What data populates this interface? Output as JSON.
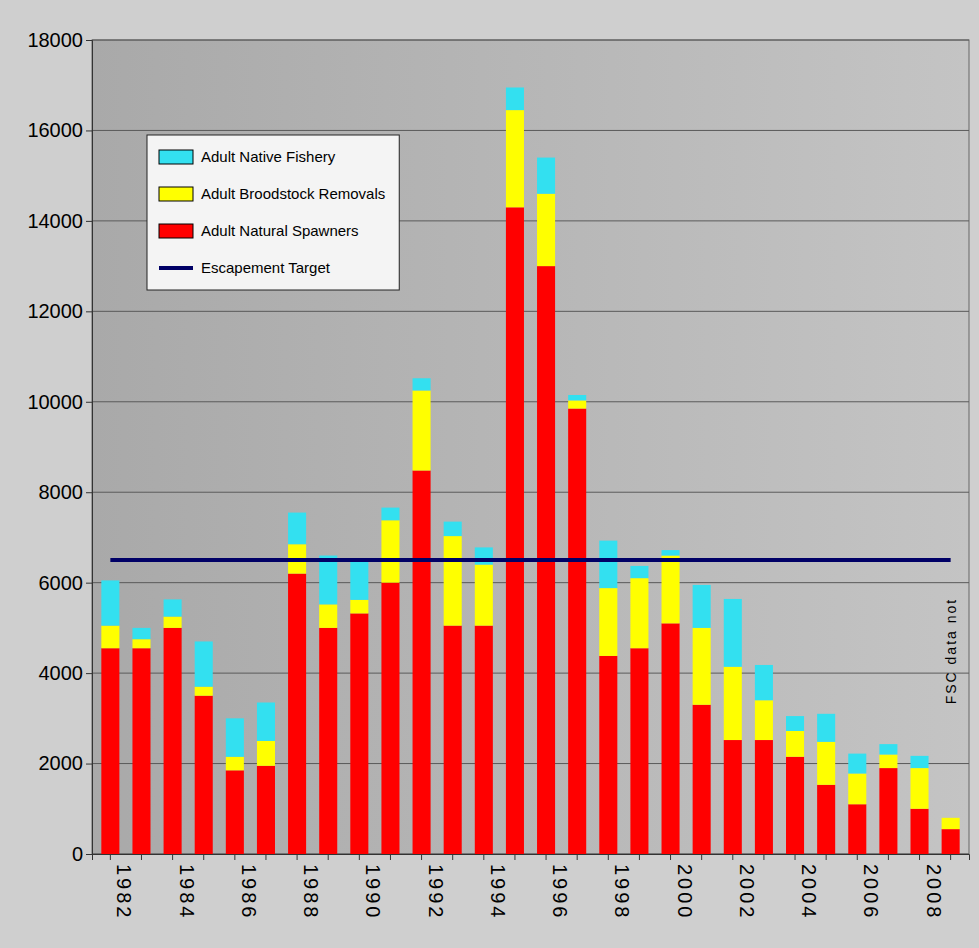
{
  "chart_data": {
    "type": "bar",
    "stacked": true,
    "grid": true,
    "legend": "top-left",
    "categories": [
      "1982",
      null,
      "1984",
      null,
      "1986",
      null,
      "1988",
      null,
      "1990",
      null,
      "1992",
      null,
      "1994",
      null,
      "1996",
      null,
      "1998",
      null,
      "2000",
      null,
      "2002",
      null,
      "2004",
      null,
      "2006",
      null,
      "2008",
      null
    ],
    "ylim": [
      0,
      18000
    ],
    "yticks": [
      0,
      2000,
      4000,
      6000,
      8000,
      10000,
      12000,
      14000,
      16000,
      18000
    ],
    "series": [
      {
        "name": "Adult Natural Spawners",
        "color": "#ff0000",
        "type": "bar",
        "values": [
          4550,
          4550,
          5000,
          3500,
          1850,
          1950,
          6200,
          5000,
          5320,
          6000,
          8480,
          5050,
          5050,
          14300,
          13000,
          9850,
          4380,
          4550,
          5100,
          3300,
          2520,
          2520,
          2150,
          1530,
          1100,
          1900,
          1000,
          550
        ]
      },
      {
        "name": "Adult Broodstock Removals",
        "color": "#ffff00",
        "type": "bar",
        "values": [
          500,
          200,
          250,
          200,
          300,
          550,
          650,
          520,
          300,
          1380,
          1770,
          1980,
          1350,
          2150,
          1600,
          180,
          1500,
          1550,
          1500,
          1700,
          1620,
          880,
          570,
          950,
          680,
          300,
          900,
          250
        ]
      },
      {
        "name": "Adult Native Fishery",
        "color": "#33e0f0",
        "type": "bar",
        "values": [
          1000,
          250,
          380,
          1000,
          850,
          850,
          700,
          1080,
          880,
          280,
          270,
          320,
          380,
          500,
          800,
          120,
          1050,
          270,
          120,
          950,
          1500,
          780,
          330,
          620,
          440,
          230,
          270,
          null
        ]
      },
      {
        "name": "Escapement Target",
        "color": "#000066",
        "type": "line",
        "values": [
          6500,
          6500,
          6500,
          6500,
          6500,
          6500,
          6500,
          6500,
          6500,
          6500,
          6500,
          6500,
          6500,
          6500,
          6500,
          6500,
          6500,
          6500,
          6500,
          6500,
          6500,
          6500,
          6500,
          6500,
          6500,
          6500,
          6500,
          6500
        ]
      }
    ],
    "annotations": [
      {
        "text": "FSC data not"
      }
    ]
  }
}
